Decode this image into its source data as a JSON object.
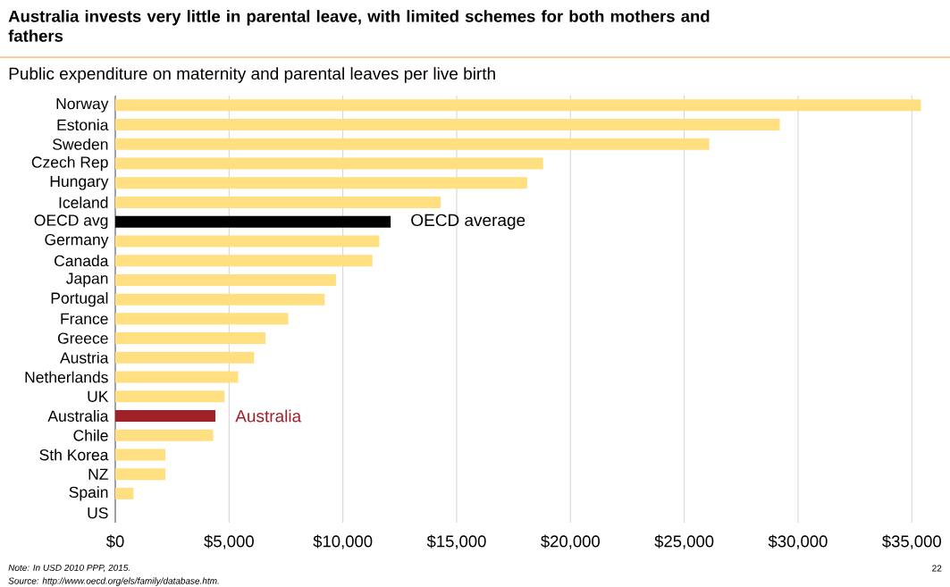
{
  "chart_data": {
    "type": "bar",
    "orientation": "horizontal",
    "title": "Australia invests very little in parental leave, with limited schemes for both mothers and fathers",
    "subtitle": "Public expenditure on maternity and parental leaves per live birth",
    "categories": [
      "Norway",
      "Estonia",
      "Sweden",
      "Czech Rep",
      "Hungary",
      "Iceland",
      "OECD avg",
      "Germany",
      "Canada",
      "Japan",
      "Portugal",
      "France",
      "Greece",
      "Austria",
      "Netherlands",
      "UK",
      "Australia",
      "Chile",
      "Sth Korea",
      "NZ",
      "Spain",
      "US"
    ],
    "values": [
      35400,
      29200,
      26100,
      18800,
      18100,
      14300,
      12100,
      11600,
      11300,
      9700,
      9200,
      7600,
      6600,
      6100,
      5400,
      4800,
      4400,
      4300,
      2200,
      2200,
      800,
      0
    ],
    "colors": [
      "#ffdf80",
      "#ffdf80",
      "#ffdf80",
      "#ffdf80",
      "#ffdf80",
      "#ffdf80",
      "#000000",
      "#ffdf80",
      "#ffdf80",
      "#ffdf80",
      "#ffdf80",
      "#ffdf80",
      "#ffdf80",
      "#ffdf80",
      "#ffdf80",
      "#ffdf80",
      "#a02128",
      "#ffdf80",
      "#ffdf80",
      "#ffdf80",
      "#ffdf80",
      "#ffdf80"
    ],
    "xlim": [
      0,
      35500
    ],
    "xticks": [
      {
        "value": 0,
        "label": "$0"
      },
      {
        "value": 5000,
        "label": "$5,000"
      },
      {
        "value": 10000,
        "label": "$10,000"
      },
      {
        "value": 15000,
        "label": "$15,000"
      },
      {
        "value": 20000,
        "label": "$20,000"
      },
      {
        "value": 25000,
        "label": "$25,000"
      },
      {
        "value": 30000,
        "label": "$30,000"
      },
      {
        "value": 35000,
        "label": "$35,000"
      }
    ],
    "grid": "x",
    "annotations": [
      {
        "text": "OECD average",
        "x": 12100,
        "y": "OECD avg"
      },
      {
        "text": "Australia",
        "x": 4400,
        "y": "Australia"
      },
      "Note: In USD 2010 PPP, 2015.",
      "Source: http://www.oecd.org/els/family/database.htm.",
      "22"
    ]
  }
}
